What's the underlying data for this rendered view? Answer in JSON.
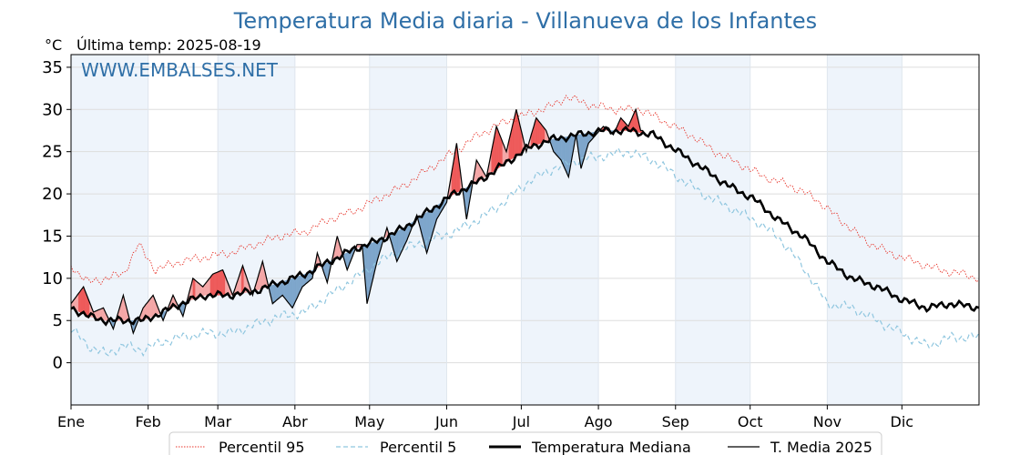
{
  "colors": {
    "title": "#2f6fa7",
    "p95": "#e8352b",
    "p5": "#8fc6df",
    "median": "#000000",
    "media2025": "#000000",
    "above_fill": "#f4a7a7",
    "above_fill_strong": "#ee5a5a",
    "below_fill": "#7ea6cb",
    "month_band": "#eef4fb"
  },
  "chart_data": {
    "type": "line",
    "title": "Temperatura Media diaria - Villanueva de los Infantes",
    "unit_label": "°C",
    "last_temp_label": "Última temp: 2025-08-19",
    "watermark": "WWW.EMBALSES.NET",
    "ylim": [
      -5,
      36.5
    ],
    "yticks": [
      0,
      5,
      10,
      15,
      20,
      25,
      30,
      35
    ],
    "xlim": [
      1,
      366
    ],
    "grid": true,
    "legend_position": "bottom-center",
    "months": [
      {
        "label": "Ene",
        "day": 1
      },
      {
        "label": "Feb",
        "day": 32
      },
      {
        "label": "Mar",
        "day": 60
      },
      {
        "label": "Abr",
        "day": 91
      },
      {
        "label": "May",
        "day": 121
      },
      {
        "label": "Jun",
        "day": 152
      },
      {
        "label": "Jul",
        "day": 182
      },
      {
        "label": "Ago",
        "day": 213
      },
      {
        "label": "Sep",
        "day": 244
      },
      {
        "label": "Oct",
        "day": 274
      },
      {
        "label": "Nov",
        "day": 305
      },
      {
        "label": "Dic",
        "day": 335
      }
    ],
    "series": [
      {
        "name": "Percentil 95",
        "style": "dotted-red",
        "points": [
          [
            1,
            11.5
          ],
          [
            8,
            9.5
          ],
          [
            15,
            10
          ],
          [
            22,
            10.5
          ],
          [
            28,
            14
          ],
          [
            35,
            11
          ],
          [
            45,
            12
          ],
          [
            55,
            12.5
          ],
          [
            65,
            13
          ],
          [
            75,
            14
          ],
          [
            85,
            15
          ],
          [
            95,
            15.5
          ],
          [
            105,
            17
          ],
          [
            115,
            18
          ],
          [
            125,
            19.5
          ],
          [
            135,
            21
          ],
          [
            145,
            23
          ],
          [
            155,
            25
          ],
          [
            165,
            27
          ],
          [
            175,
            28.5
          ],
          [
            185,
            29.5
          ],
          [
            195,
            30.5
          ],
          [
            200,
            31.5
          ],
          [
            210,
            30.5
          ],
          [
            220,
            30
          ],
          [
            230,
            30
          ],
          [
            240,
            28.5
          ],
          [
            250,
            27
          ],
          [
            260,
            25
          ],
          [
            270,
            23.5
          ],
          [
            280,
            22
          ],
          [
            290,
            21
          ],
          [
            300,
            19.5
          ],
          [
            310,
            17
          ],
          [
            320,
            14.5
          ],
          [
            330,
            13
          ],
          [
            340,
            12
          ],
          [
            350,
            11
          ],
          [
            360,
            10.5
          ],
          [
            366,
            10
          ]
        ]
      },
      {
        "name": "Percentil 5",
        "style": "dashed-lightblue",
        "points": [
          [
            1,
            4
          ],
          [
            8,
            2
          ],
          [
            15,
            1
          ],
          [
            22,
            2
          ],
          [
            30,
            1.5
          ],
          [
            38,
            2.5
          ],
          [
            45,
            3
          ],
          [
            55,
            3.5
          ],
          [
            65,
            3.5
          ],
          [
            75,
            4.5
          ],
          [
            85,
            5.5
          ],
          [
            95,
            6
          ],
          [
            105,
            8
          ],
          [
            115,
            10
          ],
          [
            125,
            12
          ],
          [
            135,
            13.5
          ],
          [
            145,
            14.5
          ],
          [
            155,
            15.5
          ],
          [
            165,
            17
          ],
          [
            175,
            19
          ],
          [
            185,
            21.5
          ],
          [
            195,
            23
          ],
          [
            205,
            24
          ],
          [
            215,
            24.5
          ],
          [
            225,
            25
          ],
          [
            235,
            24
          ],
          [
            245,
            22
          ],
          [
            255,
            20
          ],
          [
            265,
            18.5
          ],
          [
            275,
            17
          ],
          [
            285,
            15
          ],
          [
            295,
            11.5
          ],
          [
            305,
            7
          ],
          [
            315,
            6.5
          ],
          [
            325,
            5
          ],
          [
            335,
            3.5
          ],
          [
            345,
            2
          ],
          [
            355,
            3
          ],
          [
            366,
            3
          ]
        ]
      },
      {
        "name": "Temperatura Mediana",
        "style": "thick-black",
        "points": [
          [
            1,
            6.5
          ],
          [
            8,
            5.5
          ],
          [
            15,
            5
          ],
          [
            22,
            5
          ],
          [
            30,
            5
          ],
          [
            38,
            6
          ],
          [
            45,
            7
          ],
          [
            55,
            8
          ],
          [
            65,
            8
          ],
          [
            75,
            8.5
          ],
          [
            85,
            9.5
          ],
          [
            95,
            10.5
          ],
          [
            105,
            12
          ],
          [
            115,
            13.5
          ],
          [
            125,
            14.5
          ],
          [
            135,
            16
          ],
          [
            145,
            18
          ],
          [
            155,
            20
          ],
          [
            165,
            21.5
          ],
          [
            175,
            23.5
          ],
          [
            185,
            25.5
          ],
          [
            195,
            26.5
          ],
          [
            205,
            27
          ],
          [
            215,
            27.5
          ],
          [
            225,
            27.5
          ],
          [
            235,
            27
          ],
          [
            245,
            25
          ],
          [
            255,
            23
          ],
          [
            265,
            21
          ],
          [
            275,
            19.5
          ],
          [
            285,
            17
          ],
          [
            295,
            15
          ],
          [
            305,
            12
          ],
          [
            315,
            10
          ],
          [
            325,
            9
          ],
          [
            335,
            7.5
          ],
          [
            345,
            6.5
          ],
          [
            355,
            7
          ],
          [
            366,
            6.5
          ]
        ]
      },
      {
        "name": "T. Media 2025",
        "style": "thin-black",
        "points": [
          [
            1,
            7
          ],
          [
            6,
            9
          ],
          [
            10,
            6
          ],
          [
            14,
            6.5
          ],
          [
            18,
            4
          ],
          [
            22,
            8
          ],
          [
            26,
            3.5
          ],
          [
            30,
            6.5
          ],
          [
            34,
            8
          ],
          [
            38,
            5
          ],
          [
            42,
            8
          ],
          [
            46,
            5.5
          ],
          [
            50,
            10
          ],
          [
            54,
            9
          ],
          [
            58,
            10.5
          ],
          [
            62,
            11
          ],
          [
            66,
            8
          ],
          [
            70,
            11.5
          ],
          [
            74,
            8
          ],
          [
            78,
            12
          ],
          [
            82,
            7
          ],
          [
            86,
            8
          ],
          [
            90,
            6.5
          ],
          [
            94,
            9
          ],
          [
            98,
            10
          ],
          [
            100,
            13
          ],
          [
            104,
            9.5
          ],
          [
            108,
            15
          ],
          [
            112,
            11
          ],
          [
            116,
            14
          ],
          [
            118,
            14
          ],
          [
            120,
            7
          ],
          [
            124,
            12
          ],
          [
            128,
            16
          ],
          [
            132,
            12
          ],
          [
            136,
            14.5
          ],
          [
            140,
            17.5
          ],
          [
            144,
            13
          ],
          [
            148,
            17
          ],
          [
            152,
            19
          ],
          [
            156,
            26
          ],
          [
            160,
            17
          ],
          [
            164,
            24
          ],
          [
            168,
            22
          ],
          [
            172,
            28
          ],
          [
            176,
            25
          ],
          [
            180,
            30
          ],
          [
            184,
            25
          ],
          [
            188,
            29
          ],
          [
            192,
            27.5
          ],
          [
            195,
            25
          ],
          [
            198,
            24
          ],
          [
            201,
            22
          ],
          [
            204,
            27
          ],
          [
            206,
            23
          ],
          [
            209,
            26
          ],
          [
            212,
            27
          ],
          [
            215,
            28
          ],
          [
            219,
            27
          ],
          [
            222,
            29
          ],
          [
            225,
            28
          ],
          [
            228,
            30
          ],
          [
            230,
            27.5
          ],
          [
            231,
            27.5
          ]
        ]
      }
    ],
    "annotations": []
  },
  "legend": {
    "items": [
      {
        "label": "Percentil 95"
      },
      {
        "label": "Percentil 5"
      },
      {
        "label": "Temperatura Mediana"
      },
      {
        "label": "T. Media 2025"
      }
    ]
  }
}
